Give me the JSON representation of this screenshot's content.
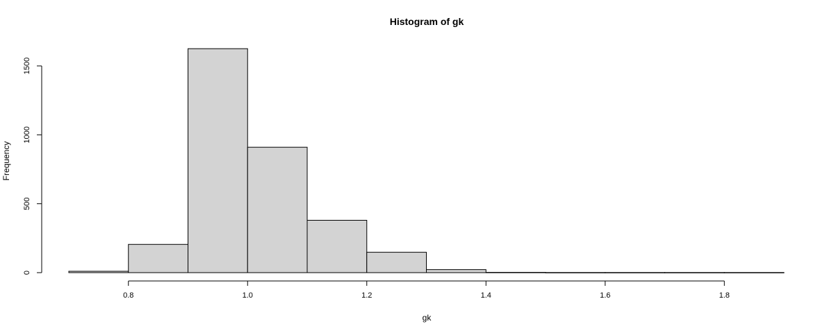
{
  "chart_data": {
    "type": "bar",
    "title": "Histogram of gk",
    "xlabel": "gk",
    "ylabel": "Frequency",
    "bins": [
      {
        "start": 0.7,
        "end": 0.8,
        "value": 10
      },
      {
        "start": 0.8,
        "end": 0.9,
        "value": 205
      },
      {
        "start": 0.9,
        "end": 1.0,
        "value": 1625
      },
      {
        "start": 1.0,
        "end": 1.1,
        "value": 910
      },
      {
        "start": 1.1,
        "end": 1.2,
        "value": 380
      },
      {
        "start": 1.2,
        "end": 1.3,
        "value": 148
      },
      {
        "start": 1.3,
        "end": 1.4,
        "value": 22
      },
      {
        "start": 1.4,
        "end": 1.5,
        "value": 2
      },
      {
        "start": 1.5,
        "end": 1.6,
        "value": 1
      },
      {
        "start": 1.6,
        "end": 1.7,
        "value": 1
      },
      {
        "start": 1.7,
        "end": 1.8,
        "value": 1
      },
      {
        "start": 1.8,
        "end": 1.9,
        "value": 1
      }
    ],
    "xticks": [
      0.8,
      1.0,
      1.2,
      1.4,
      1.6,
      1.8
    ],
    "xtick_labels": [
      "0.8",
      "1.0",
      "1.2",
      "1.4",
      "1.6",
      "1.8"
    ],
    "yticks": [
      0,
      500,
      1000,
      1500
    ],
    "ytick_labels": [
      "0",
      "500",
      "1000",
      "1500"
    ],
    "xlim": [
      0.7,
      1.9
    ],
    "ylim": [
      0,
      1650
    ],
    "grid": false,
    "colors": {
      "bar_fill": "#d3d3d3",
      "bar_stroke": "#000000",
      "axis": "#000000"
    }
  }
}
